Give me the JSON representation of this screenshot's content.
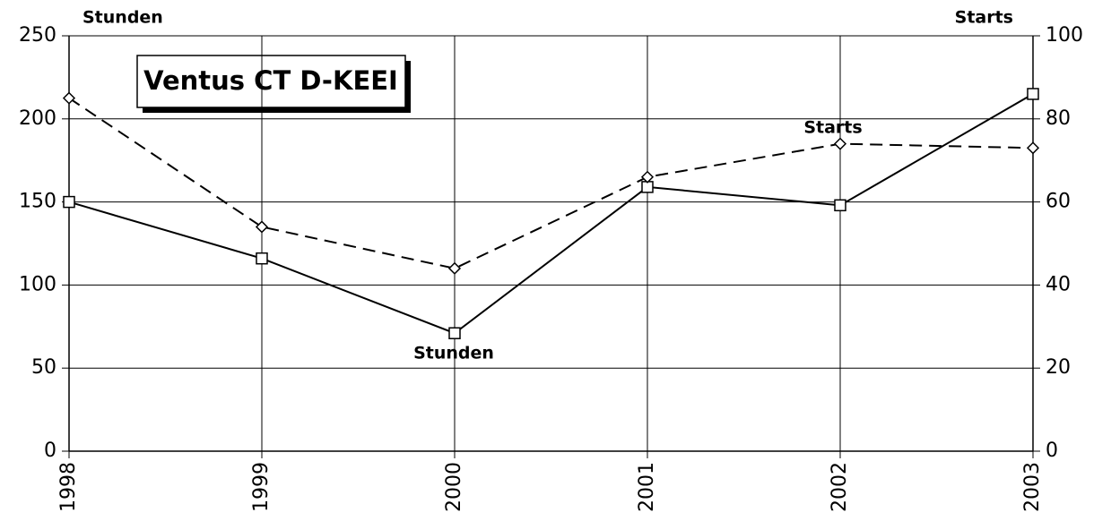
{
  "chart_data": {
    "type": "line",
    "title": "Ventus CT D-KEEI",
    "y_label": "Stunden",
    "y2_label": "Starts",
    "x": [
      1998,
      1999,
      2000,
      2001,
      2002,
      2003
    ],
    "xlim": [
      1998,
      2003
    ],
    "xticks": [
      1998,
      1999,
      2000,
      2001,
      2002,
      2003
    ],
    "ylim": [
      0,
      250
    ],
    "yticks": [
      0,
      50,
      100,
      150,
      200,
      250
    ],
    "y2lim": [
      0,
      100
    ],
    "y2ticks": [
      0,
      20,
      40,
      60,
      80,
      100
    ],
    "grid": true,
    "series": [
      {
        "name": "Stunden",
        "color": "#000000",
        "marker": "square",
        "dash": "solid",
        "values": [
          150,
          116,
          71,
          159,
          148,
          215
        ]
      },
      {
        "name": "Starts",
        "color": "#000000",
        "marker": "diamond",
        "dash": "dashed",
        "axis": "y2",
        "values": [
          85,
          54,
          44,
          66,
          74,
          73
        ]
      }
    ],
    "annotations": [
      {
        "text": "Stunden"
      },
      {
        "text": "Starts"
      }
    ]
  }
}
